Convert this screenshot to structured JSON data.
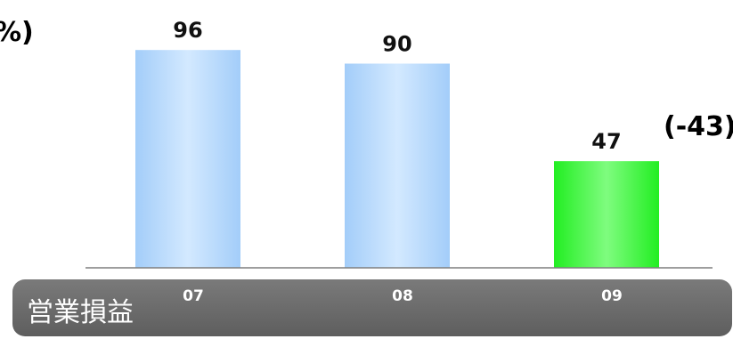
{
  "chart_data": {
    "type": "bar",
    "categories": [
      "07",
      "08",
      "09"
    ],
    "values": [
      96,
      90,
      47
    ],
    "data_labels": [
      "96",
      "90",
      "47"
    ],
    "title": "",
    "xlabel": "",
    "ylabel": "",
    "ylim": [
      0,
      100
    ],
    "grid": false,
    "bar_colors": [
      "#a9d2fb",
      "#a9d2fb",
      "#2ef22e"
    ],
    "annotations": {
      "left_unit": "%)",
      "change": "(-43)"
    },
    "footer": {
      "label": "営業損益",
      "bar_color": "#6f6f6f"
    }
  }
}
